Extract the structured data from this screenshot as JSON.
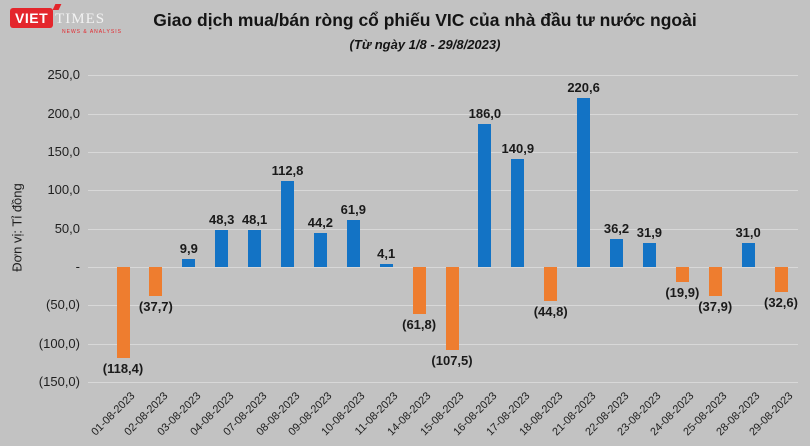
{
  "brand": {
    "logo_primary": "VIET",
    "logo_secondary": "TIMES",
    "tagline": "NEWS & ANALYSIS"
  },
  "chart_data": {
    "type": "bar",
    "title": "Giao dịch mua/bán ròng cổ phiếu VIC của nhà đầu tư nước ngoài",
    "subtitle": "(Từ ngày 1/8 - 29/8/2023)",
    "ylabel": "Đơn vị: Tỉ đồng",
    "xlabel": "",
    "grid": true,
    "legend_position": "none",
    "ylim": [
      -150,
      250
    ],
    "categories": [
      "01-08-2023",
      "02-08-2023",
      "03-08-2023",
      "04-08-2023",
      "07-08-2023",
      "08-08-2023",
      "09-08-2023",
      "10-08-2023",
      "11-08-2023",
      "14-08-2023",
      "15-08-2023",
      "16-08-2023",
      "17-08-2023",
      "18-08-2023",
      "21-08-2023",
      "22-08-2023",
      "23-08-2023",
      "24-08-2023",
      "25-08-2023",
      "28-08-2023",
      "29-08-2023"
    ],
    "values": [
      -118.4,
      -37.7,
      9.9,
      48.3,
      48.1,
      112.8,
      44.2,
      61.9,
      4.1,
      -61.8,
      -107.5,
      186.0,
      140.9,
      -44.8,
      220.6,
      36.2,
      31.9,
      -19.9,
      -37.9,
      31.0,
      -32.6
    ],
    "value_labels": [
      "(118,4)",
      "(37,7)",
      "9,9",
      "48,3",
      "48,1",
      "112,8",
      "44,2",
      "61,9",
      "4,1",
      "(61,8)",
      "(107,5)",
      "186,0",
      "140,9",
      "(44,8)",
      "220,6",
      "36,2",
      "31,9",
      "(19,9)",
      "(37,9)",
      "31,0",
      "(32,6)"
    ],
    "y_ticks": [
      {
        "v": 250,
        "label": "250,0"
      },
      {
        "v": 200,
        "label": "200,0"
      },
      {
        "v": 150,
        "label": "150,0"
      },
      {
        "v": 100,
        "label": "100,0"
      },
      {
        "v": 50,
        "label": "50,0"
      },
      {
        "v": 0,
        "label": "-"
      },
      {
        "v": -50,
        "label": "(50,0)"
      },
      {
        "v": -100,
        "label": "(100,0)"
      },
      {
        "v": -150,
        "label": "(150,0)"
      }
    ],
    "colors": {
      "positive": "#1373c5",
      "negative": "#ee7d2f",
      "background": "#c2c2c2",
      "gridline": "#d8d8d8",
      "text": "#1f1f1f",
      "brand_red": "#e4262c"
    }
  }
}
